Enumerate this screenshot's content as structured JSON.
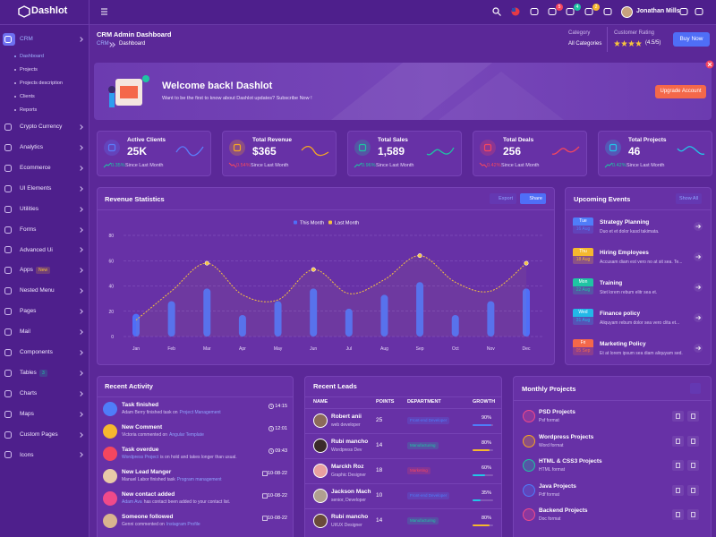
{
  "header": {
    "brand": "Dashlot",
    "user": "Jonathan Mills",
    "badges": [
      "5",
      "4",
      "2"
    ]
  },
  "sidebar": {
    "items": [
      {
        "label": "CRM",
        "children": [
          "Dashboard",
          "Projects",
          "Projects description",
          "Clients",
          "Reports"
        ]
      },
      {
        "label": "Crypto Currency"
      },
      {
        "label": "Analytics"
      },
      {
        "label": "Ecommerce"
      },
      {
        "label": "UI Elements"
      },
      {
        "label": "Utilities"
      },
      {
        "label": "Forms"
      },
      {
        "label": "Advanced Ui"
      },
      {
        "label": "Apps",
        "badge": "New"
      },
      {
        "label": "Nested Menu"
      },
      {
        "label": "Pages"
      },
      {
        "label": "Mail"
      },
      {
        "label": "Components"
      },
      {
        "label": "Tables",
        "badge": "3"
      },
      {
        "label": "Charts"
      },
      {
        "label": "Maps"
      },
      {
        "label": "Custom Pages"
      },
      {
        "label": "Icons"
      }
    ]
  },
  "page_header": {
    "title": "CRM Admin Dashboard",
    "breadcrumb": [
      "CRM",
      "Dashboard"
    ],
    "category_label": "Category",
    "category_value": "All Categories",
    "rating_label": "Customer Rating",
    "rating_value": "(4.5/5)",
    "button": "Buy Now"
  },
  "welcome": {
    "title": "Welcome back! Dashlot",
    "text": "Want to be the first to know about Dashlot updates? Subscribe Now !",
    "button": "Upgrade Account"
  },
  "stats": [
    {
      "title": "Active Clients",
      "value": "25K",
      "change": "0.35%",
      "trend": "up",
      "note": "Since Last Month",
      "color": "#5b7cfa"
    },
    {
      "title": "Total Revenue",
      "value": "$365",
      "change": "0.54%",
      "trend": "down",
      "note": "Since Last Month",
      "color": "#f5a623"
    },
    {
      "title": "Total Sales",
      "value": "1,589",
      "change": "0.96%",
      "trend": "up",
      "note": "Since Last Month",
      "color": "#1fc4a3"
    },
    {
      "title": "Total Deals",
      "value": "256",
      "change": "0.42%",
      "trend": "down",
      "note": "Since Last Month",
      "color": "#f4465f"
    },
    {
      "title": "Total Projects",
      "value": "46",
      "change": "0.42%",
      "trend": "up",
      "note": "Since Last Month",
      "color": "#22c6e8"
    }
  ],
  "revenue_card": {
    "buttons": [
      "Export",
      "Share"
    ]
  },
  "chart_data": {
    "type": "combo",
    "title": "Revenue Statistics",
    "categories": [
      "Jan",
      "Feb",
      "Mar",
      "Apr",
      "May",
      "Jun",
      "Jul",
      "Aug",
      "Sep",
      "Oct",
      "Nov",
      "Dec"
    ],
    "series": [
      {
        "name": "This Month",
        "kind": "bar",
        "color": "#4f6ef7",
        "values": [
          18,
          28,
          38,
          17,
          28,
          38,
          22,
          33,
          43,
          17,
          28,
          38
        ]
      },
      {
        "name": "Last Month",
        "kind": "line",
        "color": "#f5c23e",
        "values": [
          13,
          36,
          58,
          33,
          29,
          53,
          34,
          45,
          64,
          43,
          36,
          58
        ]
      }
    ],
    "ylim": [
      0,
      80
    ],
    "yticks": [
      0,
      20,
      40,
      60,
      80
    ],
    "grid": true
  },
  "events": {
    "title": "Upcoming Events",
    "action": "Show All",
    "items": [
      {
        "day": "Tue",
        "date": "16 Aug",
        "title": "Strategy Planning",
        "text": "Duo et et dolor kasd takimata.",
        "color": "#4f7df9"
      },
      {
        "day": "Thu",
        "date": "18 Aug",
        "title": "Hiring Employees",
        "text": "Accusam diam est vero no at sit sea. Te...",
        "color": "#f5b82e"
      },
      {
        "day": "Mon",
        "date": "22 Aug",
        "title": "Training",
        "text": "Stet lorem rebum elitr sea et.",
        "color": "#1fc4a3"
      },
      {
        "day": "Wed",
        "date": "31 Aug",
        "title": "Finance policy",
        "text": "Aliquyam rebum dolor sea vero clita et...",
        "color": "#22b8e8"
      },
      {
        "day": "Fri",
        "date": "05 Sep",
        "title": "Marketing Policy",
        "text": "Et at lorem ipsum sea diam aliquyam sed.",
        "color": "#f4684a"
      }
    ]
  },
  "activity": {
    "title": "Recent Activity",
    "items": [
      {
        "title": "Task finished",
        "parts": [
          "Adam Berry finished task on",
          "Project Management"
        ],
        "link": 1,
        "time": "14:15",
        "icon": "clock",
        "color": "#4f7df9"
      },
      {
        "title": "New Comment",
        "parts": [
          "Victoria commented on",
          "Angular Template"
        ],
        "link": 1,
        "time": "12:01",
        "icon": "clock",
        "color": "#f5b82e"
      },
      {
        "title": "Task overdue",
        "parts": [
          "Wordpress Project",
          "is on hold and takes longer than usual."
        ],
        "link": 0,
        "time": "09:43",
        "icon": "clock",
        "color": "#f4465f"
      },
      {
        "title": "New Lead Manger",
        "parts": [
          "Manuel Labor finished task",
          "Program management"
        ],
        "link": 1,
        "time": "10-08-22",
        "icon": "calendar",
        "color": "#e8c9a8"
      },
      {
        "title": "New contact added",
        "parts": [
          "Adam Ava",
          "has contact been added to your contact list."
        ],
        "link": 0,
        "time": "10-08-22",
        "icon": "calendar",
        "color": "#f04a8a"
      },
      {
        "title": "Someone followed",
        "parts": [
          "Genni commented on",
          "Instagram Profile"
        ],
        "link": 1,
        "time": "10-08-22",
        "icon": "calendar",
        "color": "#d9b48f"
      }
    ]
  },
  "leads": {
    "title": "Recent Leads",
    "columns": [
      "NAME",
      "POINTS",
      "DEPARTMENT",
      "GROWTH"
    ],
    "rows": [
      {
        "name": "Robert anii",
        "role": "web developer",
        "points": "25",
        "department": "Front-end Developer",
        "dept_color": "#4f7df9",
        "growth": "90%",
        "bar_color": "#4f7df9"
      },
      {
        "name": "Rubi mancho",
        "role": "Wordpress Dev",
        "points": "14",
        "department": "Manufacturing",
        "dept_color": "#1fc4a3",
        "growth": "80%",
        "bar_color": "#f5b82e"
      },
      {
        "name": "Marckh Roz",
        "role": "Graphic Designer",
        "points": "18",
        "department": "Marketing",
        "dept_color": "#f4465f",
        "growth": "60%",
        "bar_color": "#22c6e8"
      },
      {
        "name": "Jackson Mach",
        "role": "senior, Developer",
        "points": "10",
        "department": "Front-end Developer",
        "dept_color": "#4f7df9",
        "growth": "35%",
        "bar_color": "#22c6e8"
      },
      {
        "name": "Rubi mancho",
        "role": "UI/UX Designer",
        "points": "14",
        "department": "Manufacturing",
        "dept_color": "#1fc4a3",
        "growth": "80%",
        "bar_color": "#f5b82e"
      }
    ]
  },
  "projects": {
    "title": "Monthly Projects",
    "items": [
      {
        "name": "PSD Projects",
        "format": "Psf format",
        "color": "#f04a8a"
      },
      {
        "name": "Wordpress Projects",
        "format": "Word format",
        "color": "#f5a623"
      },
      {
        "name": "HTML & CSS3 Projects",
        "format": "HTML format",
        "color": "#1fc4a3"
      },
      {
        "name": "Java Projects",
        "format": "Pdf format",
        "color": "#4f7df9"
      },
      {
        "name": "Backend Projects",
        "format": "Doc format",
        "color": "#f04a8a"
      }
    ]
  }
}
